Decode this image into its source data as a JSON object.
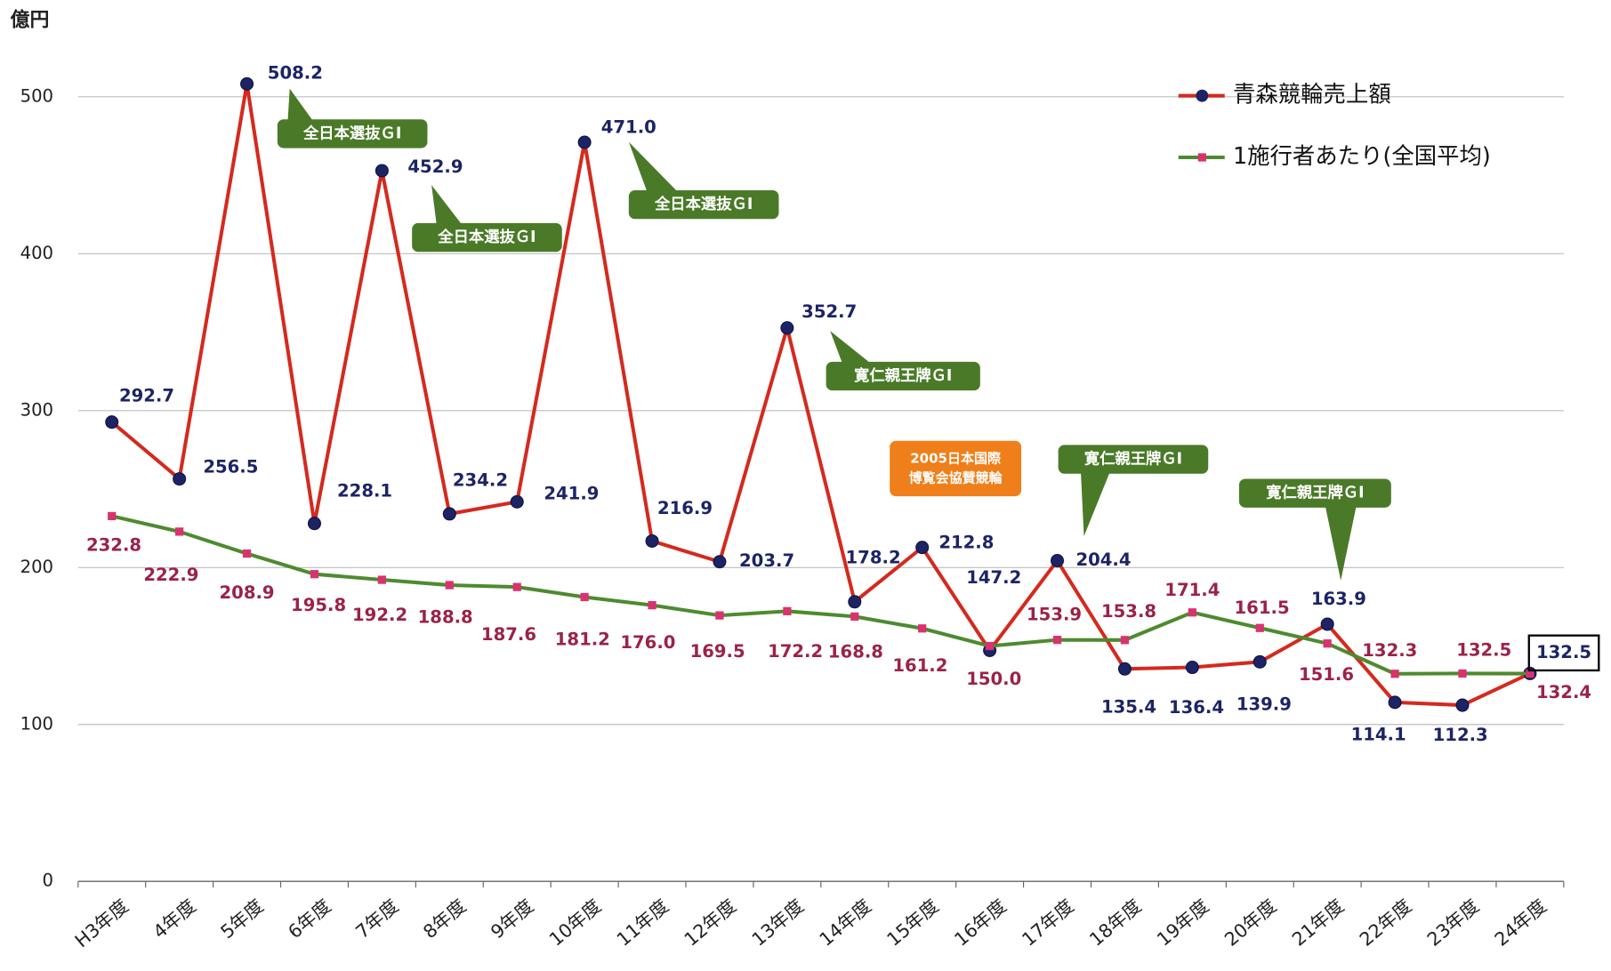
{
  "chart_data": {
    "type": "line",
    "y_unit_label": "億円",
    "categories": [
      "H3年度",
      "4年度",
      "5年度",
      "6年度",
      "7年度",
      "8年度",
      "9年度",
      "10年度",
      "11年度",
      "12年度",
      "13年度",
      "14年度",
      "15年度",
      "16年度",
      "17年度",
      "18年度",
      "19年度",
      "20年度",
      "21年度",
      "22年度",
      "23年度",
      "24年度"
    ],
    "series": [
      {
        "name": "青森競輪売上額",
        "color": "#d42a1e",
        "marker_color": "#1c2466",
        "values": [
          292.7,
          256.5,
          508.2,
          228.1,
          452.9,
          234.2,
          241.9,
          471.0,
          216.9,
          203.7,
          352.7,
          178.2,
          212.8,
          147.2,
          204.4,
          135.4,
          136.4,
          139.9,
          163.9,
          114.1,
          112.3,
          132.5
        ],
        "value_labels": [
          "292.7",
          "256.5",
          "508.2",
          "228.1",
          "452.9",
          "234.2",
          "241.9",
          "471.0",
          "216.9",
          "203.7",
          "352.7",
          "178.2",
          "212.8",
          "147.2",
          "204.4",
          "135.4",
          "136.4",
          "139.9",
          "163.9",
          "114.1",
          "112.3",
          "132.5"
        ]
      },
      {
        "name": "1施行者あたり(全国平均)",
        "color": "#4e8a2f",
        "marker_color": "#d8336e",
        "values": [
          232.8,
          222.9,
          208.9,
          195.8,
          192.2,
          188.8,
          187.6,
          181.2,
          176.0,
          169.5,
          172.2,
          168.8,
          161.2,
          150.0,
          153.9,
          153.8,
          171.4,
          161.5,
          151.6,
          132.3,
          132.5,
          132.4
        ],
        "value_labels": [
          "232.8",
          "222.9",
          "208.9",
          "195.8",
          "192.2",
          "188.8",
          "187.6",
          "181.2",
          "176.0",
          "169.5",
          "172.2",
          "168.8",
          "161.2",
          "150.0",
          "153.9",
          "153.8",
          "171.4",
          "161.5",
          "151.6",
          "132.3",
          "132.5",
          "132.4"
        ]
      }
    ],
    "ylim": [
      0,
      550
    ],
    "yticks": [
      0,
      100,
      200,
      300,
      400,
      500
    ],
    "grid": true,
    "legend": "upper right",
    "annotations": [
      {
        "lines": [
          "全日本選抜ＧⅠ"
        ]
      },
      {
        "lines": [
          "全日本選抜ＧⅠ"
        ]
      },
      {
        "lines": [
          "全日本選抜ＧⅠ"
        ]
      },
      {
        "lines": [
          "寛仁親王牌ＧⅠ"
        ]
      },
      {
        "lines": [
          "2005日本国際",
          "博覧会協賛競輪"
        ]
      },
      {
        "lines": [
          "寛仁親王牌ＧⅠ"
        ]
      },
      {
        "lines": [
          "寛仁親王牌ＧⅠ"
        ]
      }
    ]
  }
}
